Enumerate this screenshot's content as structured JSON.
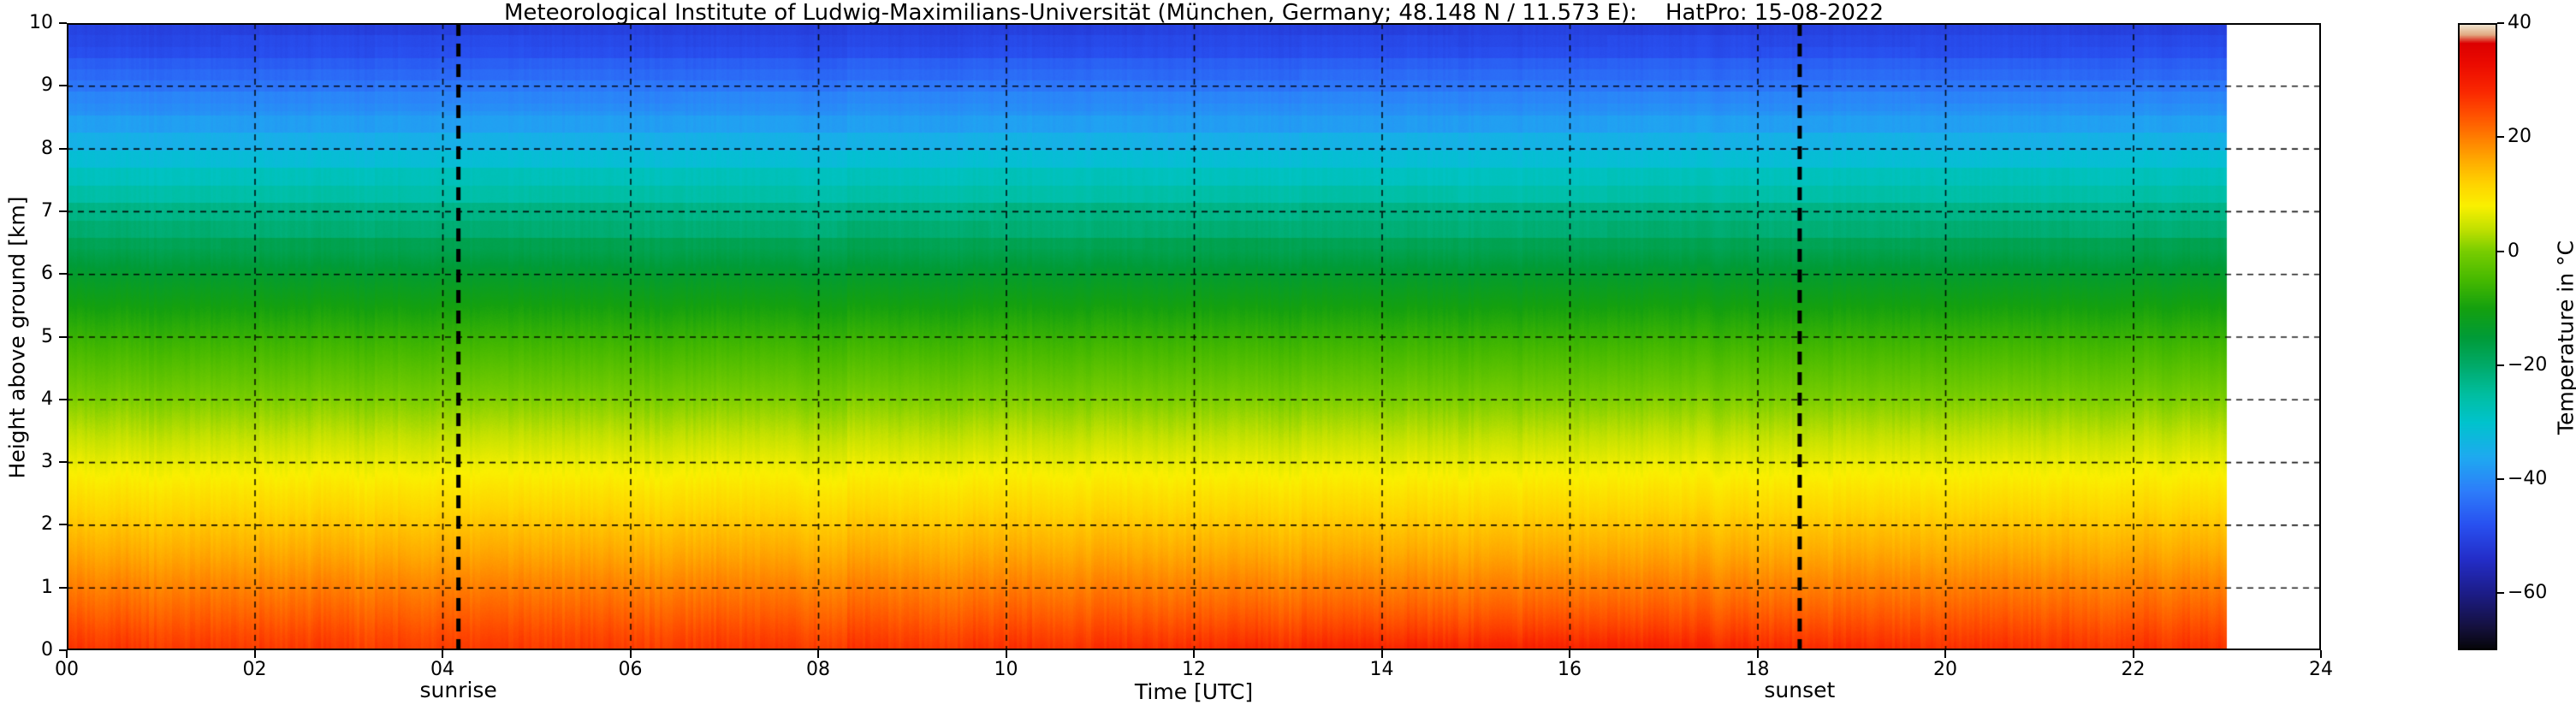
{
  "title": "Meteorological Institute of Ludwig-Maximilians-Universität (München, Germany; 48.148 N / 11.573 E):    HatPro: 15-08-2022",
  "axes": {
    "xlabel": "Time [UTC]",
    "ylabel": "Height above ground [km]",
    "colorbar_label": "Temperature in  °C",
    "x_ticks": [
      {
        "value": 0,
        "label": "00"
      },
      {
        "value": 2,
        "label": "02"
      },
      {
        "value": 4,
        "label": "04"
      },
      {
        "value": 6,
        "label": "06"
      },
      {
        "value": 8,
        "label": "08"
      },
      {
        "value": 10,
        "label": "10"
      },
      {
        "value": 12,
        "label": "12"
      },
      {
        "value": 14,
        "label": "14"
      },
      {
        "value": 16,
        "label": "16"
      },
      {
        "value": 18,
        "label": "18"
      },
      {
        "value": 20,
        "label": "20"
      },
      {
        "value": 22,
        "label": "22"
      },
      {
        "value": 24,
        "label": "24"
      }
    ],
    "y_ticks": [
      {
        "value": 0,
        "label": "0"
      },
      {
        "value": 1,
        "label": "1"
      },
      {
        "value": 2,
        "label": "2"
      },
      {
        "value": 3,
        "label": "3"
      },
      {
        "value": 4,
        "label": "4"
      },
      {
        "value": 5,
        "label": "5"
      },
      {
        "value": 6,
        "label": "6"
      },
      {
        "value": 7,
        "label": "7"
      },
      {
        "value": 8,
        "label": "8"
      },
      {
        "value": 9,
        "label": "9"
      },
      {
        "value": 10,
        "label": "10"
      }
    ],
    "colorbar_ticks": [
      {
        "value": 40,
        "label": "40"
      },
      {
        "value": 20,
        "label": "20"
      },
      {
        "value": 0,
        "label": "0"
      },
      {
        "value": -20,
        "label": "−20"
      },
      {
        "value": -40,
        "label": "−40"
      },
      {
        "value": -60,
        "label": "−60"
      }
    ]
  },
  "annotations": {
    "sunrise": {
      "label": "sunrise",
      "time": 4.17
    },
    "sunset": {
      "label": "sunset",
      "time": 18.45
    }
  },
  "chart_data": {
    "type": "heatmap",
    "title": "Meteorological Institute of Ludwig-Maximilians-Universität (München, Germany; 48.148 N / 11.573 E):    HatPro: 15-08-2022",
    "xlabel": "Time [UTC]",
    "ylabel": "Height above ground [km]",
    "value_label": "Temperature in °C",
    "x_range": [
      0,
      24
    ],
    "y_range": [
      0,
      10
    ],
    "data_end": 23.0,
    "value_range": [
      -70,
      40
    ],
    "grid": true,
    "x_gridlines": [
      2,
      4,
      6,
      8,
      10,
      12,
      14,
      16,
      18,
      20,
      22
    ],
    "y_gridlines": [
      1,
      2,
      3,
      4,
      5,
      6,
      7,
      8,
      9
    ],
    "profile_heights": [
      0,
      0.5,
      1,
      1.5,
      2,
      2.5,
      3,
      3.5,
      4,
      4.5,
      5,
      5.5,
      6,
      6.5,
      7,
      7.5,
      8,
      8.5,
      9,
      9.5,
      10
    ],
    "profile_temps": [
      27,
      23.2,
      19.8,
      16.4,
      13.2,
      9.9,
      6.7,
      3.4,
      0.2,
      -3.1,
      -6.5,
      -10.2,
      -14,
      -18.4,
      -23,
      -27.9,
      -33,
      -38,
      -43,
      -47.6,
      -52
    ],
    "surface_anomaly": {
      "afternoon_peak_time": 15.5,
      "afternoon_amplitude": 2.5,
      "afternoon_width": 3.5,
      "morning_dip_time": 4.5,
      "morning_amplitude": -1.0,
      "morning_width": 3.0,
      "height_scale_km": 0.5
    },
    "layer_banding": {
      "start_km": 6.4,
      "step_km": 0.28,
      "upper_start_km": 8.6,
      "upper_step_km": 0.18
    },
    "colormap_stops": [
      [
        -70,
        "#050505"
      ],
      [
        -66,
        "#14103c"
      ],
      [
        -60,
        "#1c1c87"
      ],
      [
        -54,
        "#232dc8"
      ],
      [
        -48,
        "#2850f0"
      ],
      [
        -42,
        "#2d7dfa"
      ],
      [
        -36,
        "#1eaaf0"
      ],
      [
        -30,
        "#00c3cd"
      ],
      [
        -25,
        "#00bea0"
      ],
      [
        -20,
        "#00aa69"
      ],
      [
        -15,
        "#009b37"
      ],
      [
        -10,
        "#14a00f"
      ],
      [
        -5,
        "#46b900"
      ],
      [
        0,
        "#78cd00"
      ],
      [
        4,
        "#c3e100"
      ],
      [
        8,
        "#faf000"
      ],
      [
        12,
        "#ffd200"
      ],
      [
        16,
        "#ffaa00"
      ],
      [
        20,
        "#ff7d00"
      ],
      [
        24,
        "#ff5000"
      ],
      [
        28,
        "#fa2800"
      ],
      [
        33,
        "#eb0a00"
      ],
      [
        36.5,
        "#dc0000"
      ],
      [
        38,
        "#e1aa82"
      ],
      [
        40,
        "#f2ecda"
      ]
    ]
  }
}
